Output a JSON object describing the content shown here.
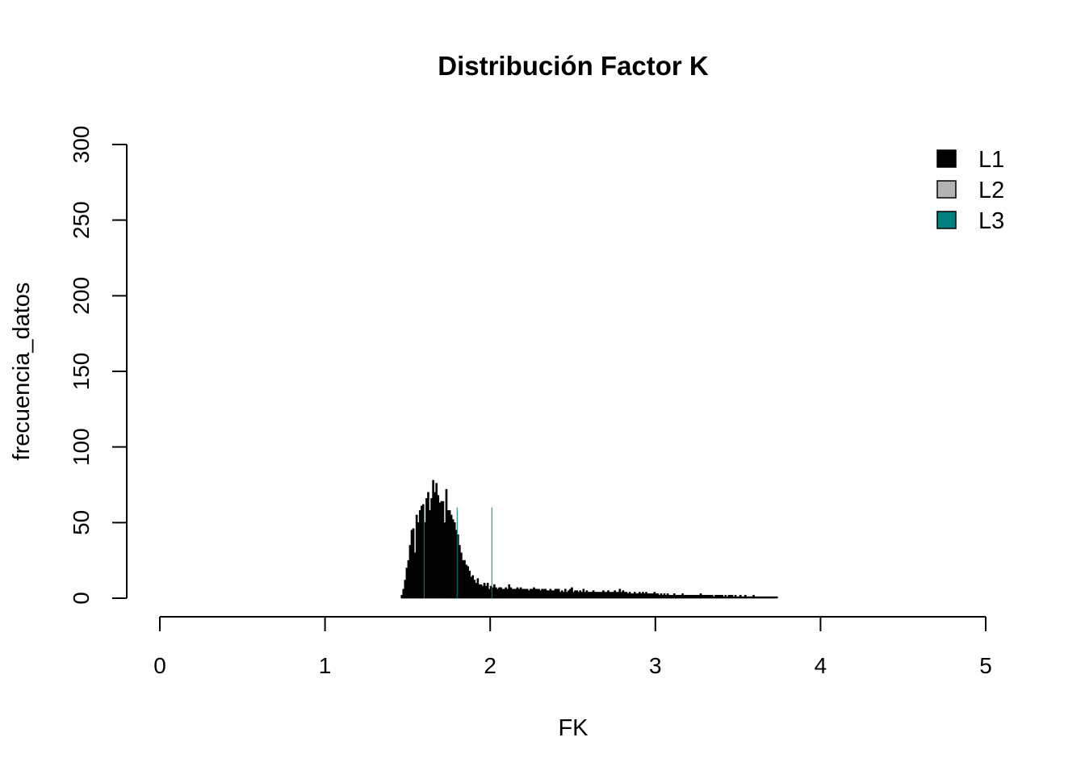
{
  "chart_data": {
    "type": "bar",
    "title": "Distribución Factor K",
    "xlabel": "FK",
    "ylabel": "frecuencia_datos",
    "xlim": [
      0,
      5
    ],
    "ylim": [
      0,
      300
    ],
    "x_ticks": [
      "0",
      "1",
      "2",
      "3",
      "4",
      "5"
    ],
    "y_ticks": [
      "0",
      "50",
      "100",
      "150",
      "200",
      "250",
      "300"
    ],
    "grid": false,
    "legend_position": "top-right",
    "bin_start": 1.46,
    "bin_width": 0.01,
    "series": [
      {
        "name": "L1",
        "color": "#000000",
        "values": [
          2,
          6,
          12,
          20,
          25,
          35,
          45,
          46,
          30,
          55,
          50,
          58,
          61,
          62,
          50,
          66,
          70,
          58,
          66,
          78,
          70,
          76,
          68,
          63,
          64,
          64,
          50,
          72,
          58,
          58,
          55,
          52,
          50,
          45,
          42,
          35,
          30,
          25,
          25,
          22,
          21,
          18,
          14,
          15,
          12,
          10,
          13,
          9,
          9,
          8,
          10,
          8,
          10,
          6,
          8,
          7,
          9,
          7,
          6,
          7,
          7,
          6,
          6,
          7,
          6,
          9,
          7,
          6,
          6,
          6,
          7,
          6,
          7,
          6,
          6,
          6,
          6,
          5,
          6,
          6,
          7,
          6,
          6,
          6,
          5,
          6,
          6,
          6,
          5,
          5,
          6,
          5,
          5,
          6,
          6,
          6,
          4,
          5,
          4,
          6,
          4,
          5,
          6,
          7,
          4,
          5,
          5,
          4,
          5,
          4,
          6,
          4,
          5,
          4,
          4,
          4,
          5,
          4,
          4,
          4,
          4,
          4,
          5,
          4,
          4,
          5,
          4,
          4,
          4,
          5,
          4,
          4,
          6,
          4,
          5,
          4,
          4,
          3,
          4,
          3,
          3,
          4,
          3,
          3,
          4,
          3,
          4,
          3,
          4,
          3,
          3,
          3,
          3,
          4,
          3,
          3,
          2,
          3,
          2,
          3,
          2,
          3,
          2,
          2,
          2,
          3,
          2,
          2,
          2,
          2,
          3,
          2,
          2,
          2,
          2,
          2,
          2,
          2,
          2,
          2,
          2,
          3,
          2,
          2,
          2,
          2,
          2,
          2,
          2,
          1,
          2,
          2,
          2,
          2,
          2,
          1,
          2,
          1,
          2,
          2,
          2,
          1,
          2,
          1,
          1,
          2,
          1,
          1,
          2,
          1,
          1,
          1,
          1,
          2,
          1,
          1,
          1,
          1,
          1,
          1,
          1,
          1,
          1,
          1,
          1,
          1,
          1,
          1
        ]
      },
      {
        "name": "L2",
        "color": "#b3b3b3",
        "values": []
      },
      {
        "name": "L3",
        "color": "#008080",
        "values": []
      }
    ]
  }
}
